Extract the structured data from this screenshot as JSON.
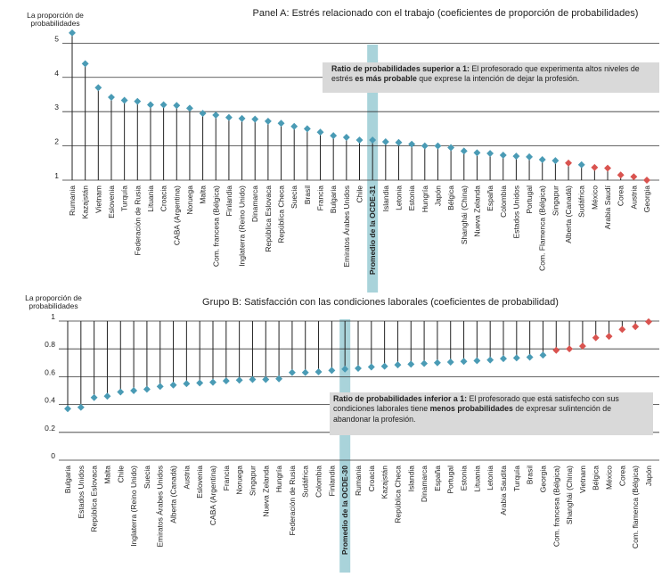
{
  "chart_data": [
    {
      "type": "lollipop",
      "title": "Panel A: Estrés relacionado con el trabajo (coeficientes de proporción de probabilidades)",
      "y_label": [
        "La proporción de",
        "probabilidades"
      ],
      "categories": [
        "Rumania",
        "Kazajstán",
        "Vietnam",
        "Eslovenia",
        "Turquía",
        "Federación de Rusia",
        "Lituania",
        "Croacia",
        "CABA (Argentina)",
        "Noruega",
        "Malta",
        "Com. francesa (Bélgica)",
        "Finlandia",
        "Inglaterra (Reino Unido)",
        "Dinamarca",
        "República Eslovaca",
        "República Checa",
        "Suecia",
        "Brasil",
        "Francia",
        "Bulgaria",
        "Emiratos Árabes Unidos",
        "Chile",
        "Promedio de la OCDE-31",
        "Islandia",
        "Letonia",
        "Estonia",
        "Hungría",
        "Japón",
        "Bélgica",
        "Shanghái (China)",
        "Nueva Zelanda",
        "España",
        "Colombia",
        "Estados Unidos",
        "Portugal",
        "Com. Flamenca (Bélgica)",
        "Singapur",
        "Alberta (Canadá)",
        "Sudáfrica",
        "México",
        "Arabia Saudí",
        "Corea",
        "Austria",
        "Georgia"
      ],
      "values": [
        5.3,
        4.4,
        3.7,
        3.42,
        3.33,
        3.3,
        3.2,
        3.2,
        3.18,
        3.1,
        2.95,
        2.9,
        2.83,
        2.8,
        2.78,
        2.72,
        2.66,
        2.57,
        2.5,
        2.4,
        2.3,
        2.25,
        2.17,
        2.17,
        2.12,
        2.1,
        2.05,
        2.0,
        2.0,
        1.95,
        1.85,
        1.8,
        1.78,
        1.73,
        1.7,
        1.68,
        1.6,
        1.57,
        1.5,
        1.45,
        1.37,
        1.35,
        1.15,
        1.1,
        1.0
      ],
      "colors": [
        "#4a9bb5",
        "#4a9bb5",
        "#4a9bb5",
        "#4a9bb5",
        "#4a9bb5",
        "#4a9bb5",
        "#4a9bb5",
        "#4a9bb5",
        "#4a9bb5",
        "#4a9bb5",
        "#4a9bb5",
        "#4a9bb5",
        "#4a9bb5",
        "#4a9bb5",
        "#4a9bb5",
        "#4a9bb5",
        "#4a9bb5",
        "#4a9bb5",
        "#4a9bb5",
        "#4a9bb5",
        "#4a9bb5",
        "#4a9bb5",
        "#4a9bb5",
        "#4a9bb5",
        "#4a9bb5",
        "#4a9bb5",
        "#4a9bb5",
        "#4a9bb5",
        "#4a9bb5",
        "#4a9bb5",
        "#4a9bb5",
        "#4a9bb5",
        "#4a9bb5",
        "#4a9bb5",
        "#4a9bb5",
        "#4a9bb5",
        "#4a9bb5",
        "#4a9bb5",
        "#d9534f",
        "#4a9bb5",
        "#d9534f",
        "#d9534f",
        "#d9534f",
        "#d9534f",
        "#d9534f"
      ],
      "highlight_index": 23,
      "highlight_color": "#a9d3da",
      "stem": "bottom",
      "ylim": [
        1,
        5.4
      ],
      "yticks": [
        1,
        2,
        3,
        4,
        5
      ],
      "grid": true,
      "annotation": [
        {
          "text": "Ratio de probabilidades superior a 1:",
          "bold": true
        },
        {
          "text": " El profesorado que experimenta altos niveles de estrés ",
          "bold": false
        },
        {
          "text": "es más probable",
          "bold": true
        },
        {
          "text": " que exprese la intención de dejar la profesión.",
          "bold": false
        }
      ]
    },
    {
      "type": "lollipop",
      "title": "Grupo B: Satisfacción con las condiciones laborales (coeficientes de probabilidad)",
      "y_label": [
        "La proporción de",
        "probabilidades"
      ],
      "categories": [
        "Bulgaria",
        "Estados Unidos",
        "República Eslovaca",
        "Malta",
        "Chile",
        "Inglaterra (Reino Unido)",
        "Suecia",
        "Emiratos Árabes Unidos",
        "Alberta (Canadá)",
        "Austria",
        "Eslovenia",
        "CABA (Argentina)",
        "Francia",
        "Noruega",
        "Singapur",
        "Nueva Zelanda",
        "Hungría",
        "Federación de Rusia",
        "Sudáfrica",
        "Colombia",
        "Finlandia",
        "Promedio de la OCDE-30",
        "Rumania",
        "Croacia",
        "Kazajstán",
        "República Checa",
        "Islandia",
        "Dinamarca",
        "España",
        "Portugal",
        "Estonia",
        "Lituania",
        "Letonia",
        "Arabia Saudita",
        "Turquía",
        "Brasil",
        "Georgia",
        "Com. francesa (Bélgica)",
        "Shanghái (China)",
        "Vietnam",
        "Bélgica",
        "México",
        "Corea",
        "Com. flamenca (Bélgica)",
        "Japón"
      ],
      "values": [
        0.37,
        0.38,
        0.45,
        0.46,
        0.49,
        0.5,
        0.51,
        0.53,
        0.54,
        0.55,
        0.555,
        0.56,
        0.57,
        0.575,
        0.58,
        0.58,
        0.585,
        0.63,
        0.63,
        0.635,
        0.645,
        0.655,
        0.66,
        0.67,
        0.675,
        0.685,
        0.69,
        0.695,
        0.7,
        0.705,
        0.71,
        0.715,
        0.72,
        0.73,
        0.735,
        0.74,
        0.755,
        0.79,
        0.8,
        0.82,
        0.88,
        0.89,
        0.94,
        0.96,
        0.995
      ],
      "colors": [
        "#4a9bb5",
        "#4a9bb5",
        "#4a9bb5",
        "#4a9bb5",
        "#4a9bb5",
        "#4a9bb5",
        "#4a9bb5",
        "#4a9bb5",
        "#4a9bb5",
        "#4a9bb5",
        "#4a9bb5",
        "#4a9bb5",
        "#4a9bb5",
        "#4a9bb5",
        "#4a9bb5",
        "#4a9bb5",
        "#4a9bb5",
        "#4a9bb5",
        "#4a9bb5",
        "#4a9bb5",
        "#4a9bb5",
        "#4a9bb5",
        "#4a9bb5",
        "#4a9bb5",
        "#4a9bb5",
        "#4a9bb5",
        "#4a9bb5",
        "#4a9bb5",
        "#4a9bb5",
        "#4a9bb5",
        "#4a9bb5",
        "#4a9bb5",
        "#4a9bb5",
        "#4a9bb5",
        "#4a9bb5",
        "#4a9bb5",
        "#4a9bb5",
        "#d9534f",
        "#d9534f",
        "#d9534f",
        "#d9534f",
        "#d9534f",
        "#d9534f",
        "#d9534f",
        "#d9534f"
      ],
      "highlight_index": 21,
      "highlight_color": "#a9d3da",
      "stem": "top",
      "ylim": [
        0,
        1
      ],
      "yticks": [
        0,
        0.2,
        0.4,
        0.6,
        0.8,
        1
      ],
      "grid": true,
      "annotation": [
        {
          "text": "Ratio de probabilidades inferior a 1:",
          "bold": true
        },
        {
          "text": " El profesorado que está satisfecho con sus condiciones laborales tiene ",
          "bold": false
        },
        {
          "text": "menos probabilidades",
          "bold": true
        },
        {
          "text": " de expresar sulintención de abandonar la profesión.",
          "bold": false
        }
      ]
    }
  ]
}
